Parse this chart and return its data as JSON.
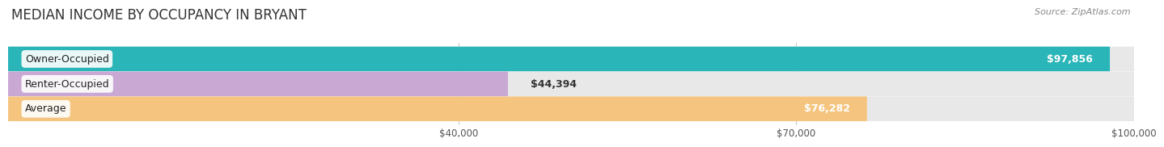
{
  "title": "MEDIAN INCOME BY OCCUPANCY IN BRYANT",
  "source": "Source: ZipAtlas.com",
  "categories": [
    "Owner-Occupied",
    "Renter-Occupied",
    "Average"
  ],
  "values": [
    97856,
    44394,
    76282
  ],
  "bar_colors": [
    "#2ab5b8",
    "#c9a8d4",
    "#f5c47e"
  ],
  "bar_bg_color": "#e8e8e8",
  "labels": [
    "$97,856",
    "$44,394",
    "$76,282"
  ],
  "xlim": [
    0,
    100000
  ],
  "xticks": [
    40000,
    70000,
    100000
  ],
  "xtick_labels": [
    "$40,000",
    "$70,000",
    "$100,000"
  ],
  "title_fontsize": 12,
  "label_fontsize": 9,
  "bar_height": 0.52,
  "background_color": "#ffffff"
}
